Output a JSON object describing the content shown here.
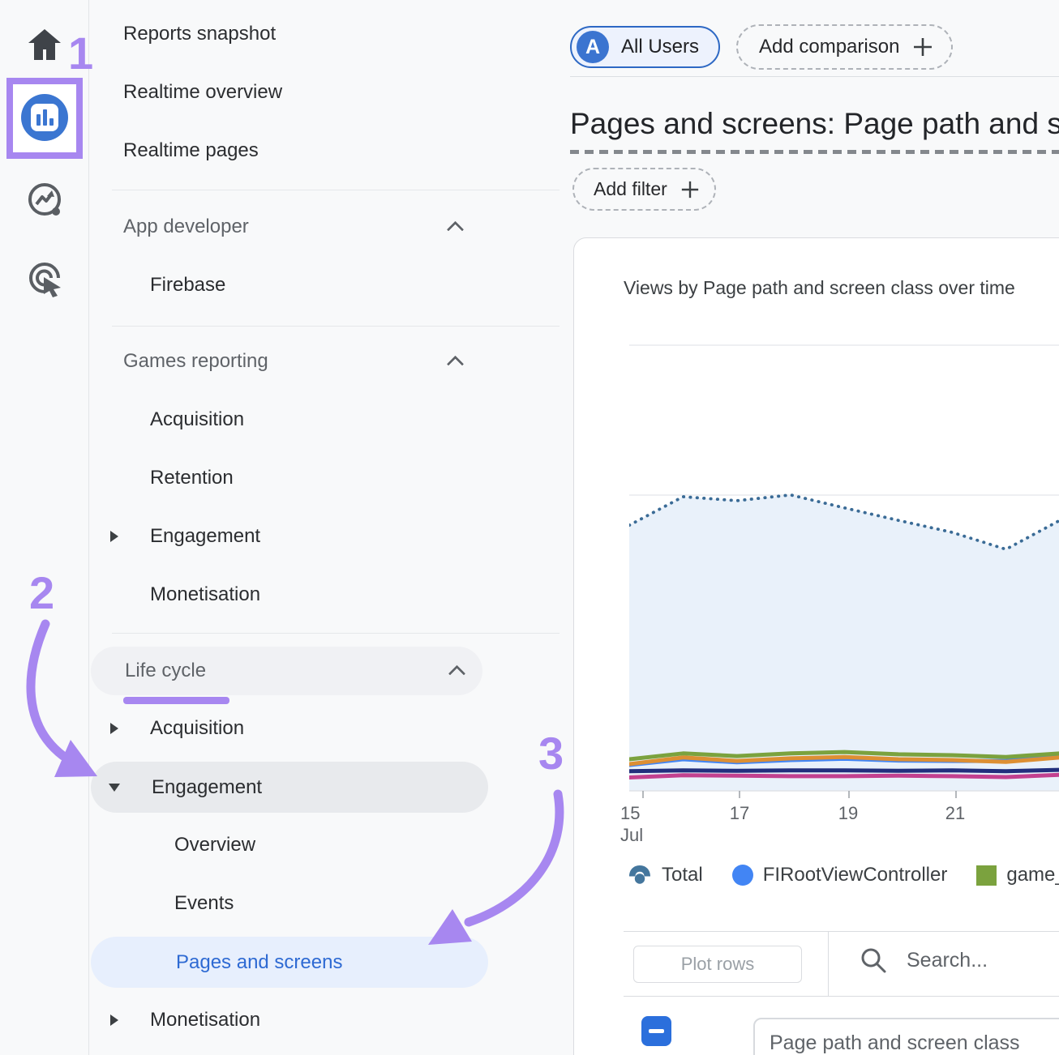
{
  "annotations": {
    "step1": "1",
    "step2": "2",
    "step3": "3"
  },
  "colors": {
    "annotation_purple": "#a787f0",
    "brand_blue": "#3b76d1",
    "selected_item_blue": "#2e6ad3",
    "selected_item_bg": "#e7effd",
    "checkbox_blue": "#2b6fdc"
  },
  "sidebar": {
    "items": [
      {
        "label": "Reports snapshot"
      },
      {
        "label": "Realtime overview"
      },
      {
        "label": "Realtime pages"
      },
      {
        "label": "App developer"
      },
      {
        "label": "Firebase"
      },
      {
        "label": "Games reporting"
      },
      {
        "label": "Acquisition"
      },
      {
        "label": "Retention"
      },
      {
        "label": "Engagement"
      },
      {
        "label": "Monetisation"
      },
      {
        "label": "Life cycle"
      },
      {
        "label": "Acquisition"
      },
      {
        "label": "Engagement"
      },
      {
        "label": "Overview"
      },
      {
        "label": "Events"
      },
      {
        "label": "Pages and screens"
      },
      {
        "label": "Monetisation"
      }
    ]
  },
  "header": {
    "audience_chip": "All Users",
    "avatar_letter": "A",
    "add_comparison_label": "Add comparison",
    "title": "Pages and screens: Page path and screen class",
    "add_filter_label": "Add filter"
  },
  "card": {
    "title": "Views by Page path and screen class over time"
  },
  "legend": {
    "items": [
      {
        "label": "Total"
      },
      {
        "label": "FIRootViewController"
      },
      {
        "label": "game_board"
      }
    ]
  },
  "toolbar": {
    "plot_rows_label": "Plot rows",
    "search_placeholder": "Search..."
  },
  "table": {
    "first_column_header": "Page path and screen class"
  },
  "chart_data": {
    "type": "line",
    "title": "Views by Page path and screen class over time",
    "x_range": [
      "14 Jul",
      "22 Jul"
    ],
    "x_ticks": [
      {
        "label": "15",
        "sub": "Jul"
      },
      {
        "label": "17",
        "sub": ""
      },
      {
        "label": "19",
        "sub": ""
      },
      {
        "label": "21",
        "sub": ""
      }
    ],
    "y_axis_labels_visible": false,
    "grid": true,
    "legend_position": "bottom",
    "series": [
      {
        "name": "Total",
        "style": "dotted-area",
        "color": "#3a6b96",
        "fill": "#e9f1fa",
        "values_relative_height": [
          0.596,
          0.66,
          0.651,
          0.664,
          0.635,
          0.607,
          0.58,
          0.542,
          0.607
        ]
      },
      {
        "name": "FIRootViewController",
        "style": "line",
        "color": "#4285f4",
        "values_relative_height": [
          0.058,
          0.071,
          0.064,
          0.069,
          0.072,
          0.068,
          0.067,
          0.067,
          0.083
        ]
      },
      {
        "name": "",
        "style": "line",
        "color": "#dd8f33",
        "values_relative_height": [
          0.06,
          0.075,
          0.067,
          0.073,
          0.076,
          0.071,
          0.069,
          0.065,
          0.075
        ]
      },
      {
        "name": "game_board",
        "style": "line",
        "color": "#7ba23e",
        "values_relative_height": [
          0.071,
          0.084,
          0.078,
          0.084,
          0.087,
          0.082,
          0.08,
          0.076,
          0.084
        ]
      },
      {
        "name": "",
        "style": "line",
        "color": "#222f7d",
        "values_relative_height": [
          0.044,
          0.046,
          0.045,
          0.046,
          0.046,
          0.045,
          0.046,
          0.044,
          0.047
        ]
      },
      {
        "name": "",
        "style": "line",
        "color": "#c2418f",
        "values_relative_height": [
          0.03,
          0.035,
          0.034,
          0.033,
          0.033,
          0.034,
          0.033,
          0.031,
          0.036
        ]
      }
    ]
  }
}
